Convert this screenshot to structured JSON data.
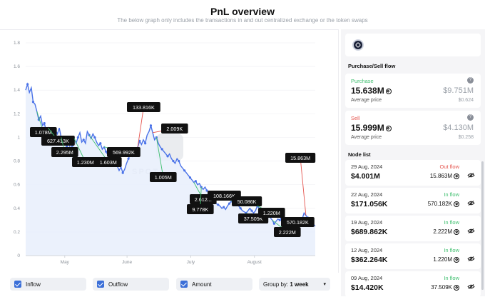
{
  "header": {
    "title": "PnL overview",
    "subtitle": "The below graph only includes the transactions in and out centralized exchange or the token swaps"
  },
  "chart_data": {
    "type": "line",
    "ylim": [
      0,
      1.8
    ],
    "yticks": [
      "0",
      "0.2",
      "0.4",
      "0.6",
      "0.8",
      "1",
      "1.2",
      "1.4",
      "1.6",
      "1.8"
    ],
    "xticks": [
      "May",
      "June",
      "July",
      "August"
    ],
    "series": [
      {
        "values": [
          1.4,
          1.45,
          1.38,
          1.42,
          1.3,
          1.28,
          1.22,
          1.15,
          1.18,
          1.1,
          1.12,
          1.05,
          1.08,
          1.0,
          1.02,
          0.98,
          1.06,
          1.03,
          1.08,
          1.0,
          0.95,
          0.97,
          0.92,
          0.96,
          0.9,
          0.93,
          0.99,
          0.95,
          1.0,
          1.04,
          0.96,
          0.98,
          0.95,
          1.05,
          1.02,
          0.99,
          1.03,
          1.0,
          0.96,
          0.93,
          0.95,
          0.9,
          0.92,
          0.88,
          0.85,
          0.82,
          0.86,
          0.8,
          0.78,
          0.76,
          0.72,
          0.75,
          0.7,
          0.73,
          0.78,
          0.82,
          0.86,
          0.84,
          0.9,
          0.88,
          0.92,
          0.97,
          0.94,
          0.98,
          0.95,
          1.02,
          1.05,
          1.1,
          1.04,
          0.98,
          1.0,
          0.95,
          0.92,
          0.9,
          0.88,
          0.86,
          0.84,
          0.86,
          0.82,
          0.8,
          0.78,
          0.82,
          0.8,
          0.76,
          0.74,
          0.72,
          0.7,
          0.68,
          0.66,
          0.64,
          0.62,
          0.63,
          0.6,
          0.61,
          0.58,
          0.56,
          0.58,
          0.55,
          0.53,
          0.5,
          0.48,
          0.46,
          0.44,
          0.43,
          0.42,
          0.4,
          0.41,
          0.39,
          0.42,
          0.44,
          0.46,
          0.44,
          0.43,
          0.45,
          0.42,
          0.4,
          0.38,
          0.37,
          0.36,
          0.38,
          0.4,
          0.38,
          0.36,
          0.38,
          0.42,
          0.4,
          0.38,
          0.39,
          0.37,
          0.36,
          0.34,
          0.32,
          0.3,
          0.27,
          0.29,
          0.31,
          0.3,
          0.33,
          0.32,
          0.31,
          0.3,
          0.32,
          0.3,
          0.31,
          0.29,
          0.3,
          0.31,
          0.3,
          0.31,
          0.36,
          0.34,
          0.32,
          0.3,
          0.28,
          0.26,
          0.25
        ]
      }
    ],
    "callouts": [
      {
        "label": "1.078M",
        "type": "inflow"
      },
      {
        "label": "627.413K",
        "type": "inflow"
      },
      {
        "label": "2.295M",
        "type": "inflow"
      },
      {
        "label": "1.230M",
        "type": "inflow"
      },
      {
        "label": "1.603M",
        "type": "inflow"
      },
      {
        "label": "569.992K",
        "type": "inflow"
      },
      {
        "label": "133.816K",
        "type": "outflow"
      },
      {
        "label": "2.009K",
        "type": "outflow"
      },
      {
        "label": "1.005M",
        "type": "inflow"
      },
      {
        "label": "2.612M",
        "type": "inflow"
      },
      {
        "label": "9.778K",
        "type": "inflow"
      },
      {
        "label": "108.166K",
        "type": "inflow"
      },
      {
        "label": "50.086K",
        "type": "inflow"
      },
      {
        "label": "37.509K",
        "type": "inflow"
      },
      {
        "label": "1.220M",
        "type": "inflow"
      },
      {
        "label": "2.222M",
        "type": "inflow"
      },
      {
        "label": "570.182K",
        "type": "inflow"
      },
      {
        "label": "15.863M",
        "type": "outflow"
      }
    ],
    "colors": {
      "line": "#4a72e8",
      "area": "#e8eefc",
      "inflow": "#3fbf6f",
      "outflow": "#e5554f"
    }
  },
  "controls": {
    "inflow_label": "Inflow",
    "outflow_label": "Outflow",
    "amount_label": "Amount",
    "group_prefix": "Group by:",
    "group_value": "1 week"
  },
  "side": {
    "flow_title": "Purchase/Sell flow",
    "purchase": {
      "label": "Purchase",
      "amount": "15.638M",
      "usd": "$9.751M",
      "avg_label": "Average price",
      "avg_value": "$0.624"
    },
    "sell": {
      "label": "Sell",
      "amount": "15.999M",
      "usd": "$4.130M",
      "avg_label": "Average price",
      "avg_value": "$0.258"
    },
    "node_title": "Node list",
    "nodes": [
      {
        "date": "29 Aug, 2024",
        "value": "$4.001M",
        "flow": "Out flow",
        "amount": "15.863M",
        "dir": "out"
      },
      {
        "date": "22 Aug, 2024",
        "value": "$171.056K",
        "flow": "In flow",
        "amount": "570.182K",
        "dir": "in"
      },
      {
        "date": "19 Aug, 2024",
        "value": "$689.862K",
        "flow": "In flow",
        "amount": "2.222M",
        "dir": "in"
      },
      {
        "date": "12 Aug, 2024",
        "value": "$362.264K",
        "flow": "In flow",
        "amount": "1.220M",
        "dir": "in"
      },
      {
        "date": "09 Aug, 2024",
        "value": "$14.420K",
        "flow": "In flow",
        "amount": "37.509K",
        "dir": "in"
      }
    ]
  }
}
